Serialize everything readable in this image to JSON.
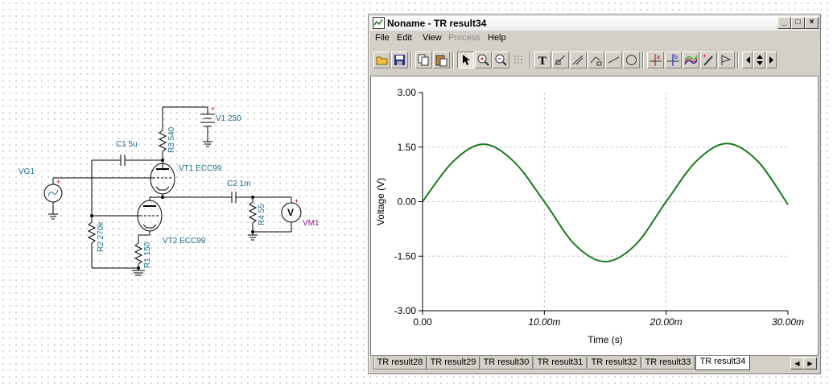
{
  "schematic": {
    "labels": {
      "vg1": "VG1",
      "c1": "C1 5u",
      "c2": "C2 1m",
      "v1": "V1 250",
      "vt1": "VT1 ECC99",
      "vt2": "VT2 ECC99",
      "r3": "R3 540",
      "r2": "R2 270k",
      "r1": "R1 150",
      "r4": "R4 55",
      "vm1": "VM1",
      "v_symbol": "V"
    }
  },
  "window": {
    "title": "Noname - TR result34",
    "menu": [
      {
        "label": "File",
        "enabled": true
      },
      {
        "label": "Edit",
        "enabled": true
      },
      {
        "label": "View",
        "enabled": true
      },
      {
        "label": "Process",
        "enabled": false
      },
      {
        "label": "Help",
        "enabled": true
      }
    ],
    "toolbar_icons": [
      "open-folder-icon",
      "save-icon",
      "copy-icon",
      "paste-icon",
      "pointer-icon",
      "zoom-in-icon",
      "zoom-100-icon",
      "grid-icon",
      "text-icon",
      "cursor-a-icon",
      "cursor-b-icon",
      "cursor-ab-icon",
      "line-icon",
      "circle-icon",
      "marker-a-icon",
      "marker-b-icon",
      "curves-icon",
      "probe-icon",
      "flag-icon",
      "nav-left-icon",
      "nav-updown-icon",
      "nav-right-icon"
    ],
    "tabs": [
      "TR result28",
      "TR result29",
      "TR result30",
      "TR result31",
      "TR result32",
      "TR result33",
      "TR result34"
    ],
    "active_tab": "TR result34"
  },
  "chart_data": {
    "type": "line",
    "title": "",
    "xlabel": "Time (s)",
    "ylabel": "Voltage (V)",
    "xlim": [
      0,
      0.03
    ],
    "ylim": [
      -3.0,
      3.0
    ],
    "x_ticks": [
      "0.00",
      "10.00m",
      "20.00m",
      "30.00m"
    ],
    "y_ticks": [
      "3.00",
      "1.50",
      "0.00",
      "-1.50",
      "-3.00"
    ],
    "grid": true,
    "line_color": "#1a7a1a",
    "series": [
      {
        "x": [
          0,
          0.0025,
          0.005,
          0.0075,
          0.01,
          0.0125,
          0.015,
          0.0175,
          0.02,
          0.0225,
          0.025,
          0.0275,
          0.03
        ],
        "values": [
          0.0,
          1.1,
          1.58,
          1.1,
          0.0,
          -1.18,
          -1.65,
          -1.18,
          0.0,
          1.12,
          1.6,
          1.12,
          -0.08
        ]
      }
    ]
  }
}
